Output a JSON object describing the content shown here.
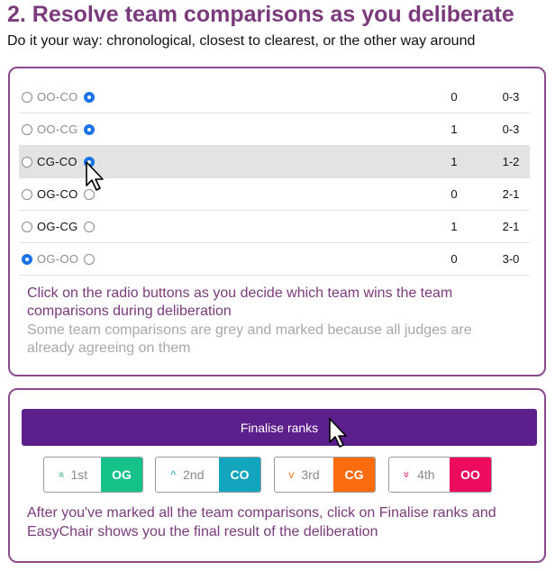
{
  "heading": {
    "title": "2. Resolve team comparisons as you deliberate",
    "subtitle": "Do it your way: chronological, closest to clearest, or the other way around"
  },
  "comparisons": [
    {
      "pair": "OO-CO",
      "first_selected": false,
      "second_selected": true,
      "greyed": true,
      "highlighted": false,
      "count": "0",
      "score": "0-3"
    },
    {
      "pair": "OO-CG",
      "first_selected": false,
      "second_selected": true,
      "greyed": true,
      "highlighted": false,
      "count": "1",
      "score": "0-3"
    },
    {
      "pair": "CG-CO",
      "first_selected": false,
      "second_selected": true,
      "greyed": false,
      "highlighted": true,
      "count": "1",
      "score": "1-2"
    },
    {
      "pair": "OG-CO",
      "first_selected": false,
      "second_selected": false,
      "greyed": false,
      "highlighted": false,
      "count": "0",
      "score": "2-1"
    },
    {
      "pair": "OG-CG",
      "first_selected": false,
      "second_selected": false,
      "greyed": false,
      "highlighted": false,
      "count": "1",
      "score": "2-1"
    },
    {
      "pair": "OG-OO",
      "first_selected": true,
      "second_selected": false,
      "greyed": true,
      "highlighted": false,
      "count": "0",
      "score": "3-0"
    }
  ],
  "comparison_hint": "Click on the radio buttons as you decide which team wins the team comparisons during deliberation",
  "grey_hint": "Some team comparisons are grey and marked because all judges are already agreeing on them",
  "finalise_label": "Finalise ranks",
  "ranks": [
    {
      "label": "1st",
      "icon": "double-chevron-up-icon",
      "glyph": "»",
      "icon_color": "#22b07d",
      "team": "OG",
      "team_color": "#15c28a"
    },
    {
      "label": "2nd",
      "icon": "chevron-up-icon",
      "glyph": "^",
      "icon_color": "#1aa6c2",
      "team": "CO",
      "team_color": "#13a5be"
    },
    {
      "label": "3rd",
      "icon": "chevron-down-icon",
      "glyph": "v",
      "icon_color": "#f2711c",
      "team": "CG",
      "team_color": "#fb6c0f"
    },
    {
      "label": "4th",
      "icon": "double-chevron-down-icon",
      "glyph": "»",
      "icon_color": "#e6175c",
      "team": "OO",
      "team_color": "#ec0b5f"
    }
  ],
  "final_hint": "After you've marked all the team comparisons, click on Finalise ranks and EasyChair shows you the final result of the deliberation"
}
